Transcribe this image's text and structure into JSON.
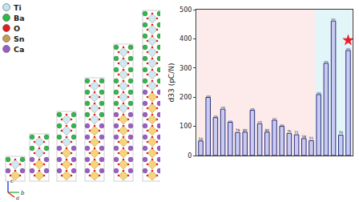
{
  "chart_data": {
    "type": "bar",
    "categories": [
      null,
      null,
      null,
      null,
      null,
      null,
      null,
      null,
      null,
      null,
      null,
      null,
      null,
      null,
      null,
      null,
      null,
      null,
      null,
      null,
      null
    ],
    "series": [
      {
        "type": "bar",
        "color": "#c9cbf2",
        "values": [
          50,
          199,
          130,
          159,
          114,
          79,
          80,
          155,
          109,
          80,
          121,
          100,
          76,
          71,
          58,
          51,
          209,
          316,
          461,
          70,
          360
        ]
      },
      {
        "type": "scatter",
        "marker": "star",
        "color": "#e8202a",
        "values": [
          null,
          null,
          null,
          null,
          null,
          null,
          null,
          null,
          null,
          null,
          null,
          null,
          null,
          null,
          null,
          null,
          null,
          null,
          null,
          null,
          395
        ]
      }
    ],
    "y_label": "d33 (pC/N)",
    "ylim": [
      0,
      500
    ],
    "yticks": [
      0,
      100,
      200,
      300,
      400,
      500
    ],
    "data_labels": true,
    "tick_labels": "y",
    "bands": [
      {
        "from": 0,
        "to": 15,
        "color": "#fcebea"
      },
      {
        "from": 16,
        "to": 20,
        "color": "#e2f5f8"
      }
    ]
  },
  "diagram": {
    "legend": [
      {
        "label": "Ti",
        "color": "#bfe4f2"
      },
      {
        "label": "Ba",
        "color": "#2eb84a"
      },
      {
        "label": "O",
        "color": "#e02020"
      },
      {
        "label": "Sn",
        "color": "#c89a5a"
      },
      {
        "label": "Ca",
        "color": "#9b5cc9"
      }
    ],
    "axes": [
      "c",
      "b",
      "a"
    ]
  }
}
